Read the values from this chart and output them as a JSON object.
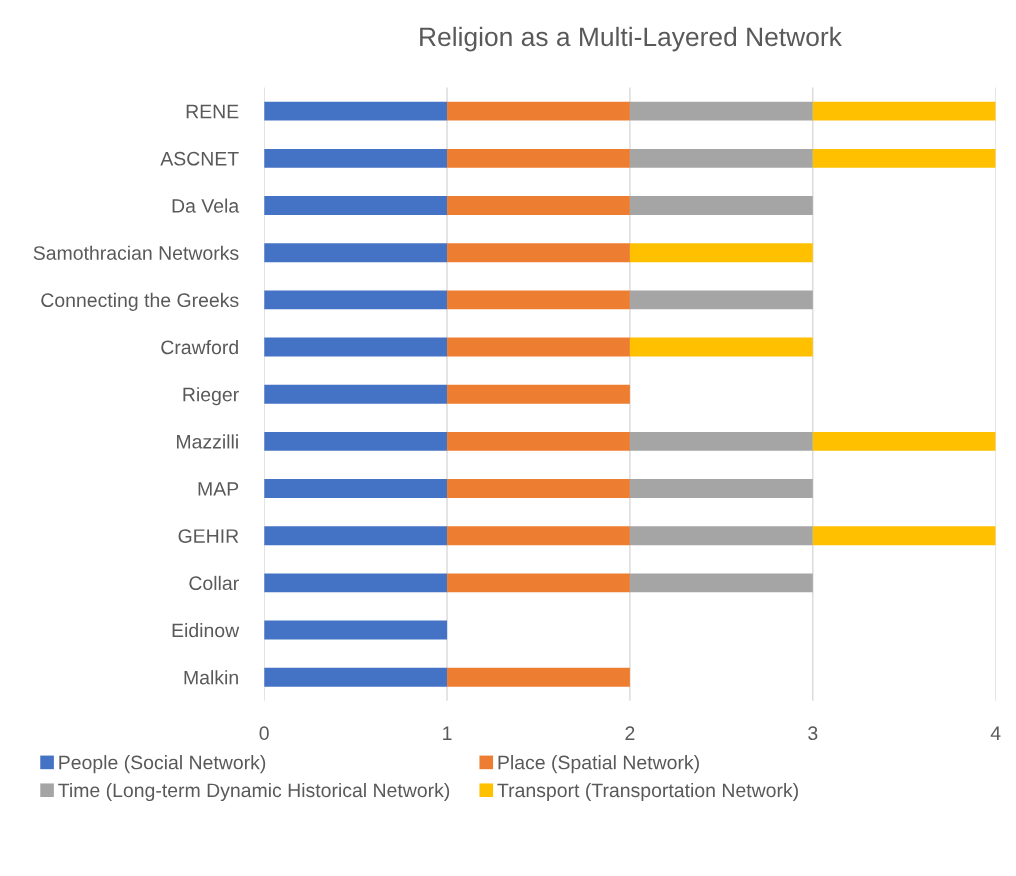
{
  "chart_data": {
    "type": "bar",
    "orientation": "horizontal",
    "stacked": true,
    "title": "Religion as a Multi-Layered Network",
    "categories": [
      "RENE",
      "ASCNET",
      "Da Vela",
      "Samothracian Networks",
      "Connecting the Greeks",
      "Crawford",
      "Rieger",
      "Mazzilli",
      "MAP",
      "GEHIR",
      "Collar",
      "Eidinow",
      "Malkin"
    ],
    "series": [
      {
        "name": "People (Social Network)",
        "color": "#4472c4",
        "values": [
          1,
          1,
          1,
          1,
          1,
          1,
          1,
          1,
          1,
          1,
          1,
          1,
          1
        ]
      },
      {
        "name": "Place (Spatial Network)",
        "color": "#ed7d31",
        "values": [
          1,
          1,
          1,
          1,
          1,
          1,
          1,
          1,
          1,
          1,
          1,
          null,
          1
        ]
      },
      {
        "name": "Time (Long-term Dynamic Historical Network)",
        "color": "#a5a5a5",
        "values": [
          1,
          1,
          1,
          null,
          1,
          null,
          null,
          1,
          1,
          1,
          1,
          null,
          null
        ]
      },
      {
        "name": "Transport (Transportation Network)",
        "color": "#ffc000",
        "values": [
          1,
          1,
          null,
          1,
          null,
          1,
          null,
          1,
          null,
          1,
          null,
          null,
          null
        ]
      }
    ],
    "xlim": [
      0,
      4
    ],
    "xticks": [
      0,
      1,
      2,
      3,
      4
    ],
    "grid": "x",
    "legend": "bottom"
  }
}
